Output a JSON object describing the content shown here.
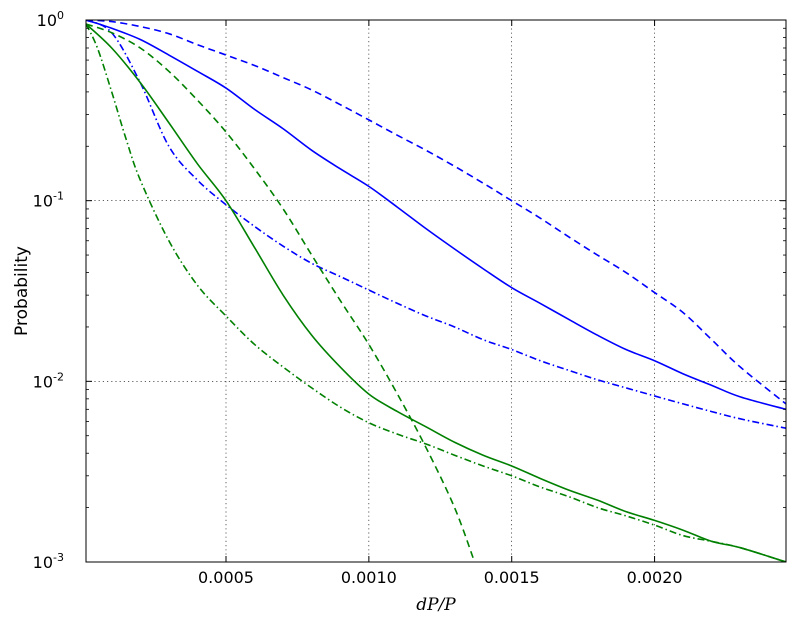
{
  "chart_data": {
    "type": "line",
    "title": "",
    "xlabel": "dP/P",
    "ylabel": "Probability",
    "xlim": [
      1e-05,
      0.00246
    ],
    "ylim": [
      0.001,
      1
    ],
    "yscale": "log",
    "grid": true,
    "x_ticks": [
      {
        "value": 0.0005,
        "label": "0.0005"
      },
      {
        "value": 0.001,
        "label": "0.0010"
      },
      {
        "value": 0.0015,
        "label": "0.0015"
      },
      {
        "value": 0.002,
        "label": "0.0020"
      }
    ],
    "y_ticks": [
      {
        "value": 1,
        "base": "10",
        "exp": "0"
      },
      {
        "value": 0.1,
        "base": "10",
        "exp": "-1"
      },
      {
        "value": 0.01,
        "base": "10",
        "exp": "-2"
      },
      {
        "value": 0.001,
        "base": "10",
        "exp": "-3"
      }
    ],
    "series": [
      {
        "id": "blue-solid",
        "color": "#0000ff",
        "style": "solid",
        "x": [
          1e-05,
          0.0001,
          0.0002,
          0.0003,
          0.0004,
          0.0005,
          0.0006,
          0.0007,
          0.0008,
          0.0009,
          0.001,
          0.0011,
          0.0012,
          0.0013,
          0.0014,
          0.0015,
          0.0016,
          0.0017,
          0.0018,
          0.0019,
          0.002,
          0.0021,
          0.0022,
          0.0023,
          0.00246
        ],
        "y": [
          1.0,
          0.9,
          0.78,
          0.64,
          0.52,
          0.42,
          0.32,
          0.25,
          0.19,
          0.15,
          0.12,
          0.092,
          0.07,
          0.054,
          0.042,
          0.033,
          0.027,
          0.022,
          0.018,
          0.015,
          0.013,
          0.011,
          0.0095,
          0.0082,
          0.007
        ]
      },
      {
        "id": "blue-dashed",
        "color": "#0000ff",
        "style": "dashed",
        "x": [
          1e-05,
          0.0001,
          0.0002,
          0.0003,
          0.0004,
          0.0005,
          0.0006,
          0.0007,
          0.0008,
          0.0009,
          0.001,
          0.0011,
          0.0012,
          0.0013,
          0.0014,
          0.0015,
          0.0016,
          0.0017,
          0.0018,
          0.0019,
          0.002,
          0.0021,
          0.0022,
          0.0023,
          0.00246
        ],
        "y": [
          1.0,
          0.98,
          0.92,
          0.84,
          0.73,
          0.64,
          0.56,
          0.48,
          0.41,
          0.34,
          0.28,
          0.23,
          0.19,
          0.155,
          0.125,
          0.1,
          0.08,
          0.063,
          0.05,
          0.04,
          0.031,
          0.024,
          0.017,
          0.012,
          0.0075
        ]
      },
      {
        "id": "blue-dashdot",
        "color": "#0000ff",
        "style": "dashdot",
        "x": [
          1e-05,
          0.0001,
          0.0002,
          0.0003,
          0.0004,
          0.0005,
          0.0006,
          0.0007,
          0.0008,
          0.0009,
          0.001,
          0.0011,
          0.0012,
          0.0013,
          0.0014,
          0.0015,
          0.0016,
          0.0017,
          0.0018,
          0.0019,
          0.002,
          0.0021,
          0.0022,
          0.0023,
          0.00246
        ],
        "y": [
          1.0,
          0.85,
          0.45,
          0.2,
          0.13,
          0.095,
          0.072,
          0.056,
          0.045,
          0.038,
          0.032,
          0.027,
          0.023,
          0.02,
          0.017,
          0.015,
          0.013,
          0.0115,
          0.0102,
          0.0092,
          0.0083,
          0.0075,
          0.0068,
          0.0062,
          0.0055
        ]
      },
      {
        "id": "green-solid",
        "color": "#008000",
        "style": "solid",
        "x": [
          1e-05,
          0.0001,
          0.0002,
          0.0003,
          0.0004,
          0.0005,
          0.0006,
          0.0007,
          0.0008,
          0.0009,
          0.001,
          0.0011,
          0.0012,
          0.0013,
          0.0014,
          0.0015,
          0.0016,
          0.0017,
          0.0018,
          0.0019,
          0.002,
          0.0021,
          0.0022,
          0.0023,
          0.00246
        ],
        "y": [
          0.95,
          0.7,
          0.45,
          0.27,
          0.16,
          0.1,
          0.055,
          0.03,
          0.018,
          0.012,
          0.0085,
          0.0068,
          0.0056,
          0.0046,
          0.0039,
          0.0034,
          0.0029,
          0.0025,
          0.0022,
          0.0019,
          0.0017,
          0.0015,
          0.0013,
          0.0012,
          0.001
        ]
      },
      {
        "id": "green-dashed",
        "color": "#008000",
        "style": "dashed",
        "x": [
          1e-05,
          0.0001,
          0.0002,
          0.0003,
          0.0004,
          0.0005,
          0.0006,
          0.0007,
          0.0008,
          0.0009,
          0.001,
          0.0011,
          0.0012,
          0.0013,
          0.00137
        ],
        "y": [
          0.95,
          0.85,
          0.7,
          0.52,
          0.36,
          0.24,
          0.15,
          0.09,
          0.05,
          0.028,
          0.016,
          0.0085,
          0.0043,
          0.002,
          0.001
        ]
      },
      {
        "id": "green-dashdot",
        "color": "#008000",
        "style": "dashdot",
        "x": [
          1e-05,
          5e-05,
          0.0001,
          0.00015,
          0.0002,
          0.0003,
          0.0004,
          0.0005,
          0.0006,
          0.0007,
          0.0008,
          0.0009,
          0.001,
          0.0011,
          0.0012,
          0.0013,
          0.0014,
          0.0015,
          0.0016,
          0.0017,
          0.0018,
          0.0019,
          0.002,
          0.0021,
          0.0022,
          0.0023,
          0.00246
        ],
        "y": [
          0.95,
          0.7,
          0.4,
          0.22,
          0.13,
          0.06,
          0.034,
          0.023,
          0.016,
          0.012,
          0.0092,
          0.0072,
          0.0059,
          0.0051,
          0.0045,
          0.0039,
          0.0034,
          0.003,
          0.0026,
          0.0023,
          0.002,
          0.0018,
          0.0016,
          0.0014,
          0.0013,
          0.0012,
          0.001
        ]
      }
    ]
  }
}
